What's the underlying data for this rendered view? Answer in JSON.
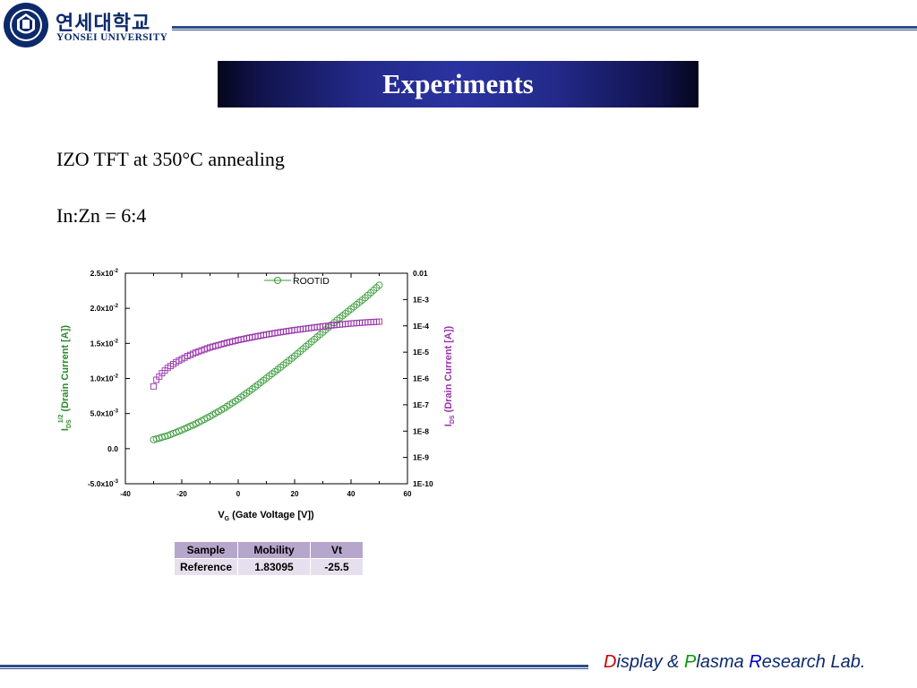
{
  "header": {
    "logo_korean": "연세대학교",
    "logo_english": "YONSEI UNIVERSITY"
  },
  "slide": {
    "title": "Experiments",
    "line1": "IZO TFT at 350°C annealing",
    "line2": "In:Zn = 6:4"
  },
  "chart_data": {
    "type": "scatter",
    "xlabel_main": "V",
    "xlabel_sub": "G",
    "xlabel_rest": " (Gate Voltage [V])",
    "ylabel_left_main": "I",
    "ylabel_left_sub": "DS",
    "ylabel_left_sup": "1/2",
    "ylabel_left_rest": " (Drain Current [A])",
    "ylabel_right_main": "I",
    "ylabel_right_sub": "DS",
    "ylabel_right_rest": " (Drain Current [A])",
    "xlim": [
      -40,
      60
    ],
    "ylim_left": [
      -0.005,
      0.025
    ],
    "ylim_right_log10": [
      -10,
      -2
    ],
    "x_ticks": [
      "-40",
      "-20",
      "0",
      "20",
      "40",
      "60"
    ],
    "y_left_ticks": [
      {
        "value": 0.025,
        "base": "2.5x10",
        "exp": "-2"
      },
      {
        "value": 0.02,
        "base": "2.0x10",
        "exp": "-2"
      },
      {
        "value": 0.015,
        "base": "1.5x10",
        "exp": "-2"
      },
      {
        "value": 0.01,
        "base": "1.0x10",
        "exp": "-2"
      },
      {
        "value": 0.005,
        "base": "5.0x10",
        "exp": "-3"
      },
      {
        "value": 0.0,
        "base": "0.0",
        "exp": ""
      },
      {
        "value": -0.005,
        "base": "-5.0x10",
        "exp": "-3"
      }
    ],
    "y_right_ticks": [
      {
        "log": -2,
        "label": "0.01"
      },
      {
        "log": -3,
        "label": "1E-3"
      },
      {
        "log": -4,
        "label": "1E-4"
      },
      {
        "log": -5,
        "label": "1E-5"
      },
      {
        "log": -6,
        "label": "1E-6"
      },
      {
        "log": -7,
        "label": "1E-7"
      },
      {
        "log": -8,
        "label": "1E-8"
      },
      {
        "log": -9,
        "label": "1E-9"
      },
      {
        "log": -10,
        "label": "1E-10"
      }
    ],
    "legend": "ROOTID",
    "legend_position": "top-center",
    "series": [
      {
        "name": "ROOTID",
        "axis": "left",
        "marker": "circle",
        "color": "#3a9a3a",
        "x": [
          -30,
          -25,
          -20,
          -15,
          -10,
          -5,
          0,
          5,
          10,
          15,
          20,
          25,
          30,
          35,
          40,
          45,
          50
        ],
        "y": [
          0.00128,
          0.00185,
          0.00265,
          0.00355,
          0.0046,
          0.00575,
          0.00705,
          0.0085,
          0.01005,
          0.0116,
          0.0132,
          0.0149,
          0.0166,
          0.0183,
          0.0199,
          0.0215,
          0.0233
        ]
      },
      {
        "axis": "right",
        "marker": "square",
        "color": "#9933aa",
        "x": [
          -30,
          -29,
          -27,
          -25,
          -22,
          -18,
          -14,
          -10,
          -5,
          0,
          5,
          10,
          15,
          20,
          25,
          30,
          35,
          40,
          45,
          50
        ],
        "y_log10": [
          -6.3,
          -6.05,
          -5.8,
          -5.6,
          -5.38,
          -5.15,
          -4.97,
          -4.82,
          -4.67,
          -4.54,
          -4.43,
          -4.33,
          -4.24,
          -4.16,
          -4.09,
          -4.02,
          -3.96,
          -3.91,
          -3.87,
          -3.84
        ]
      }
    ]
  },
  "results_table": {
    "headers": [
      "Sample",
      "Mobility",
      "Vt"
    ],
    "rows": [
      [
        "Reference",
        "1.83095",
        "-25.5"
      ]
    ]
  },
  "footer": {
    "d": "D",
    "isplay": "isplay & ",
    "p": "P",
    "lasma": "lasma ",
    "r": "R",
    "esearch": "esearch Lab."
  },
  "colors": {
    "brand_navy": "#0c2a6b",
    "rule_blue": "#2e4d8a",
    "series_green": "#3a9a3a",
    "series_purple": "#9933aa",
    "table_header": "#b7a6cc",
    "table_cell": "#e6e0ee"
  }
}
